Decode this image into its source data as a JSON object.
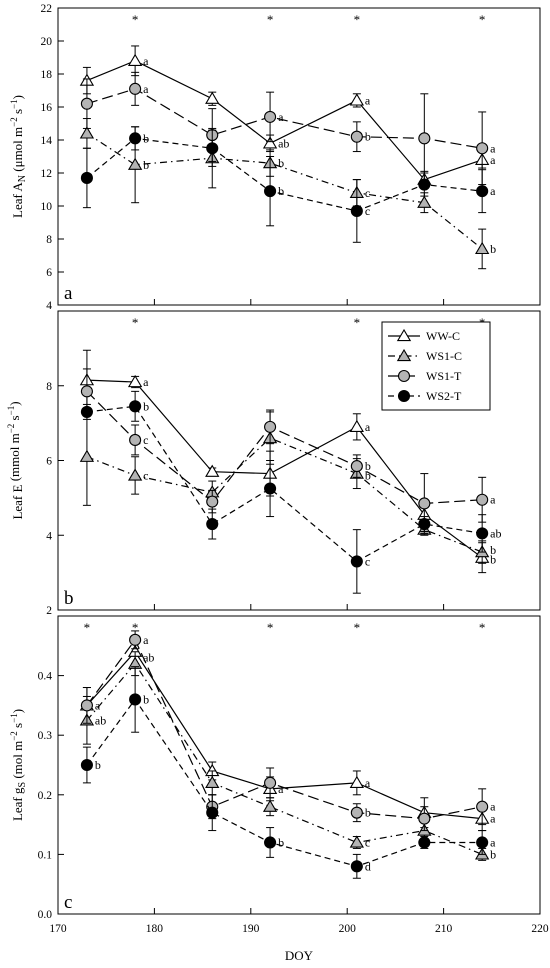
{
  "x_axis": {
    "label": "DOY",
    "range": [
      170,
      220
    ],
    "ticks": [
      170,
      180,
      190,
      200,
      210,
      220
    ]
  },
  "legend": {
    "placement": "top-right of panel b",
    "entries": [
      {
        "label": "WW-C",
        "marker": "triangle",
        "fill": "#ffffff",
        "line": "solid"
      },
      {
        "label": "WS1-C",
        "marker": "triangle",
        "fill": "#b4b4b4",
        "line": "dash-dot"
      },
      {
        "label": "WS1-T",
        "marker": "circle",
        "fill": "#b4b4b4",
        "line": "long-dash"
      },
      {
        "label": "WS2-T",
        "marker": "circle",
        "fill": "#000000",
        "line": "dash"
      }
    ]
  },
  "chart_data": [
    {
      "type": "line",
      "panel_letter": "a",
      "ylabel_parts": {
        "pre": "Leaf A",
        "sub": "N",
        "unit": " (μmol m",
        "exp1": "−2",
        "s": " s",
        "exp2": "−1",
        "close": ")"
      },
      "ylim": [
        4,
        22
      ],
      "yticks": [
        4,
        6,
        8,
        10,
        12,
        14,
        16,
        18,
        20,
        22
      ],
      "grid": false,
      "x": [
        173,
        178,
        186,
        192,
        201,
        208,
        214
      ],
      "series": [
        {
          "name": "WW-C",
          "values": [
            17.6,
            18.8,
            16.5,
            13.8,
            16.4,
            11.6,
            12.8
          ],
          "err": [
            0.8,
            0.9,
            0.4,
            0.5,
            0.4,
            0.5,
            0.5
          ]
        },
        {
          "name": "WS1-C",
          "values": [
            14.4,
            12.5,
            12.9,
            12.6,
            10.8,
            10.2,
            7.4
          ],
          "err": [
            0.9,
            2.3,
            1.8,
            0.8,
            0.8,
            0.6,
            1.2
          ]
        },
        {
          "name": "WS1-T",
          "values": [
            16.2,
            17.1,
            14.3,
            15.4,
            14.2,
            14.1,
            13.5
          ],
          "err": [
            1.5,
            1.0,
            1.6,
            1.5,
            0.9,
            2.7,
            2.2
          ]
        },
        {
          "name": "WS2-T",
          "values": [
            11.7,
            14.1,
            13.5,
            10.9,
            9.7,
            11.3,
            10.9
          ],
          "err": [
            1.8,
            0.7,
            1.1,
            2.1,
            1.9,
            0.7,
            1.3
          ]
        }
      ],
      "annotations": [
        {
          "x": 178,
          "text": "*"
        },
        {
          "x": 192,
          "text": "*"
        },
        {
          "x": 201,
          "text": "*"
        },
        {
          "x": 214,
          "text": "*"
        }
      ],
      "letters": [
        {
          "x": 178,
          "y": 18.8,
          "text": "a"
        },
        {
          "x": 178,
          "y": 17.1,
          "text": "a"
        },
        {
          "x": 178,
          "y": 14.1,
          "text": "b"
        },
        {
          "x": 178,
          "y": 12.5,
          "text": "b"
        },
        {
          "x": 192,
          "y": 15.4,
          "text": "a"
        },
        {
          "x": 192,
          "y": 13.8,
          "text": "ab"
        },
        {
          "x": 192,
          "y": 12.6,
          "text": "b"
        },
        {
          "x": 192,
          "y": 10.9,
          "text": "b"
        },
        {
          "x": 201,
          "y": 16.4,
          "text": "a"
        },
        {
          "x": 201,
          "y": 14.2,
          "text": "b"
        },
        {
          "x": 201,
          "y": 10.8,
          "text": "c"
        },
        {
          "x": 201,
          "y": 9.7,
          "text": "c"
        },
        {
          "x": 214,
          "y": 13.5,
          "text": "a"
        },
        {
          "x": 214,
          "y": 12.8,
          "text": "a"
        },
        {
          "x": 214,
          "y": 10.9,
          "text": "a"
        },
        {
          "x": 214,
          "y": 7.4,
          "text": "b"
        }
      ]
    },
    {
      "type": "line",
      "panel_letter": "b",
      "ylabel_parts": {
        "pre": "Leaf E",
        "sub": "",
        "unit": " (mmol m",
        "exp1": "−2",
        "s": " s",
        "exp2": "−1",
        "close": ")"
      },
      "ylim": [
        2,
        10
      ],
      "yticks": [
        2,
        4,
        6,
        8
      ],
      "grid": false,
      "x": [
        173,
        178,
        186,
        192,
        201,
        208,
        214
      ],
      "series": [
        {
          "name": "WW-C",
          "values": [
            8.15,
            8.1,
            5.7,
            5.65,
            6.9,
            4.55,
            3.4
          ],
          "err": [
            0.8,
            0.15,
            0.1,
            0.6,
            0.35,
            0.2,
            0.4
          ]
        },
        {
          "name": "WS1-C",
          "values": [
            6.1,
            5.6,
            5.15,
            6.6,
            5.65,
            4.15,
            3.55
          ],
          "err": [
            1.3,
            0.5,
            0.3,
            0.7,
            0.4,
            0.15,
            0.3
          ]
        },
        {
          "name": "WS1-T",
          "values": [
            7.85,
            6.55,
            4.9,
            6.9,
            5.85,
            4.85,
            4.95
          ],
          "err": [
            0.6,
            0.4,
            0.3,
            0.45,
            0.3,
            0.8,
            0.6
          ]
        },
        {
          "name": "WS2-T",
          "values": [
            7.3,
            7.45,
            4.3,
            5.25,
            3.3,
            4.3,
            4.05
          ],
          "err": [
            0.2,
            0.4,
            0.4,
            0.75,
            0.85,
            0.2,
            0.5
          ]
        }
      ],
      "annotations": [
        {
          "x": 178,
          "text": "*"
        },
        {
          "x": 201,
          "text": "*"
        },
        {
          "x": 214,
          "text": "*"
        }
      ],
      "letters": [
        {
          "x": 178,
          "y": 8.1,
          "text": "a"
        },
        {
          "x": 178,
          "y": 7.45,
          "text": "b"
        },
        {
          "x": 178,
          "y": 6.55,
          "text": "c"
        },
        {
          "x": 178,
          "y": 5.6,
          "text": "c"
        },
        {
          "x": 201,
          "y": 6.9,
          "text": "a"
        },
        {
          "x": 201,
          "y": 5.85,
          "text": "b"
        },
        {
          "x": 201,
          "y": 5.6,
          "text": "b"
        },
        {
          "x": 201,
          "y": 3.3,
          "text": "c"
        },
        {
          "x": 214,
          "y": 4.95,
          "text": "a"
        },
        {
          "x": 214,
          "y": 4.05,
          "text": "ab"
        },
        {
          "x": 214,
          "y": 3.6,
          "text": "b"
        },
        {
          "x": 214,
          "y": 3.35,
          "text": "b"
        }
      ]
    },
    {
      "type": "line",
      "panel_letter": "c",
      "ylabel_parts": {
        "pre": "Leaf g",
        "sub": "S",
        "unit": " (mol m",
        "exp1": "−2",
        "s": " s",
        "exp2": "−1",
        "close": ")"
      },
      "ylim": [
        0.0,
        0.5
      ],
      "yticks": [
        0.0,
        0.1,
        0.2,
        0.3,
        0.4
      ],
      "grid": false,
      "x": [
        173,
        178,
        186,
        192,
        201,
        208,
        214
      ],
      "series": [
        {
          "name": "WW-C",
          "values": [
            0.35,
            0.44,
            0.24,
            0.21,
            0.22,
            0.17,
            0.16
          ],
          "err": [
            0.03,
            0.02,
            0.015,
            0.02,
            0.02,
            0.025,
            0.02
          ]
        },
        {
          "name": "WS1-C",
          "values": [
            0.325,
            0.42,
            0.22,
            0.18,
            0.12,
            0.14,
            0.1
          ],
          "err": [
            0.04,
            0.02,
            0.02,
            0.015,
            0.01,
            0.02,
            0.01
          ]
        },
        {
          "name": "WS1-T",
          "values": [
            0.35,
            0.46,
            0.18,
            0.22,
            0.17,
            0.16,
            0.18
          ],
          "err": [
            0.03,
            0.015,
            0.02,
            0.025,
            0.015,
            0.02,
            0.03
          ]
        },
        {
          "name": "WS2-T",
          "values": [
            0.25,
            0.36,
            0.17,
            0.12,
            0.08,
            0.12,
            0.12
          ],
          "err": [
            0.03,
            0.055,
            0.03,
            0.025,
            0.02,
            0.01,
            0.02
          ]
        }
      ],
      "annotations": [
        {
          "x": 173,
          "text": "*"
        },
        {
          "x": 178,
          "text": "*"
        },
        {
          "x": 192,
          "text": "*"
        },
        {
          "x": 201,
          "text": "*"
        },
        {
          "x": 214,
          "text": "*"
        }
      ],
      "letters": [
        {
          "x": 173,
          "y": 0.35,
          "text": "a"
        },
        {
          "x": 173,
          "y": 0.325,
          "text": "ab"
        },
        {
          "x": 173,
          "y": 0.25,
          "text": "b"
        },
        {
          "x": 178,
          "y": 0.46,
          "text": "a"
        },
        {
          "x": 178,
          "y": 0.43,
          "text": "ab"
        },
        {
          "x": 178,
          "y": 0.36,
          "text": "b"
        },
        {
          "x": 192,
          "y": 0.21,
          "text": "a"
        },
        {
          "x": 192,
          "y": 0.12,
          "text": "b"
        },
        {
          "x": 201,
          "y": 0.22,
          "text": "a"
        },
        {
          "x": 201,
          "y": 0.17,
          "text": "b"
        },
        {
          "x": 201,
          "y": 0.12,
          "text": "c"
        },
        {
          "x": 201,
          "y": 0.08,
          "text": "d"
        },
        {
          "x": 214,
          "y": 0.18,
          "text": "a"
        },
        {
          "x": 214,
          "y": 0.16,
          "text": "a"
        },
        {
          "x": 214,
          "y": 0.12,
          "text": "a"
        },
        {
          "x": 214,
          "y": 0.1,
          "text": "b"
        }
      ]
    }
  ]
}
